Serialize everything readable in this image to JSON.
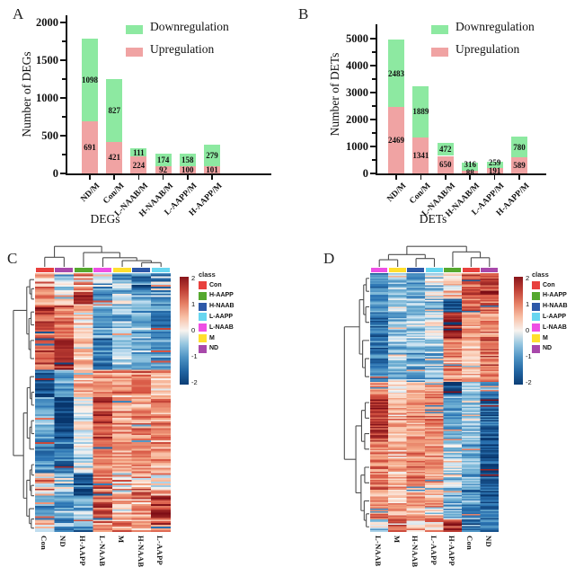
{
  "colors": {
    "bar_up": "#f0a3a3",
    "bar_down": "#8de9a1",
    "axis": "#111111",
    "dendrogram": "#4f4f4f",
    "colormap": [
      [
        -2.1,
        "#08366d"
      ],
      [
        -1.3,
        "#2b74b3"
      ],
      [
        -0.7,
        "#6fb0d3"
      ],
      [
        -0.25,
        "#c3dff0"
      ],
      [
        0,
        "#f8f3ef"
      ],
      [
        0.25,
        "#fbdccc"
      ],
      [
        0.7,
        "#f5a988"
      ],
      [
        1.3,
        "#d75442"
      ],
      [
        2.1,
        "#7e0d15"
      ]
    ]
  },
  "chart_data": [
    {
      "id": "A",
      "type": "bar",
      "stacked": true,
      "panel_label": "A",
      "xlabel": "DEGs",
      "ylabel": "Number of DEGs",
      "categories": [
        "ND/M",
        "Con/M",
        "L-NAAB/M",
        "H-NAAB/M",
        "L-AAPP/M",
        "H-AAPP/M"
      ],
      "series": [
        {
          "name": "Upregulation",
          "color": "#f0a3a3",
          "values": [
            691,
            421,
            224,
            92,
            100,
            101
          ]
        },
        {
          "name": "Downregulation",
          "color": "#8de9a1",
          "values": [
            1098,
            827,
            111,
            174,
            158,
            279
          ]
        }
      ],
      "legend_order": [
        "Downregulation",
        "Upregulation"
      ],
      "legend_position": "top-right",
      "ylim": [
        0,
        2000
      ],
      "ytick_step": 500,
      "minor_step": 250,
      "grid": false
    },
    {
      "id": "B",
      "type": "bar",
      "stacked": true,
      "panel_label": "B",
      "xlabel": "DETs",
      "ylabel": "Number of DETs",
      "categories": [
        "ND/M",
        "Con/M",
        "L-NAAB/M",
        "H-NAAB/M",
        "L-AAPP/M",
        "H-AAPP/M"
      ],
      "series": [
        {
          "name": "Upregulation",
          "color": "#f0a3a3",
          "values": [
            2469,
            1341,
            650,
            88,
            191,
            589
          ]
        },
        {
          "name": "Downregulation",
          "color": "#8de9a1",
          "values": [
            2483,
            1889,
            472,
            316,
            259,
            780
          ]
        }
      ],
      "legend_order": [
        "Downregulation",
        "Upregulation"
      ],
      "legend_position": "top-right",
      "ylim": [
        0,
        5000
      ],
      "ytick_step": 1000,
      "minor_step": 500,
      "grid": false
    },
    {
      "id": "C",
      "type": "heatmap",
      "panel_label": "C",
      "columns": [
        "Con",
        "ND",
        "H-AAPP",
        "L-NAAB",
        "M",
        "H-NAAB",
        "L-AAPP"
      ],
      "legend_title": "class",
      "class_legend": [
        {
          "label": "Con",
          "color": "#e8403d"
        },
        {
          "label": "H-AAPP",
          "color": "#55a82e"
        },
        {
          "label": "H-NAAB",
          "color": "#2d58a8"
        },
        {
          "label": "L-AAPP",
          "color": "#67d6f0"
        },
        {
          "label": "L-NAAB",
          "color": "#ee4fe4"
        },
        {
          "label": "M",
          "color": "#ffdf2e"
        },
        {
          "label": "ND",
          "color": "#a848aa"
        }
      ],
      "colorbar_ticks": [
        "2",
        "1",
        "0",
        "-1",
        "-2"
      ],
      "value_range": [
        -2,
        2
      ],
      "n_rows": 150,
      "seed": 42,
      "row_blocks": [
        {
          "frac": 0.07,
          "values": [
            0.6,
            -0.2,
            0.8,
            -0.6,
            -0.6,
            -1.4,
            -0.7
          ],
          "noise": 1.0
        },
        {
          "frac": 0.05,
          "values": [
            0.8,
            0.4,
            1.6,
            -1.3,
            -0.2,
            -0.6,
            -0.8
          ],
          "noise": 0.7
        },
        {
          "frac": 0.13,
          "values": [
            1.4,
            1.0,
            0.3,
            -0.9,
            -0.6,
            -0.8,
            -1.0
          ],
          "noise": 0.6
        },
        {
          "frac": 0.12,
          "values": [
            1.2,
            1.8,
            0.5,
            -1.3,
            -0.4,
            -0.7,
            -0.9
          ],
          "noise": 0.5
        },
        {
          "frac": 0.11,
          "values": [
            -1.7,
            -0.8,
            0.6,
            0.8,
            0.8,
            0.9,
            0.5
          ],
          "noise": 0.5
        },
        {
          "frac": 0.16,
          "values": [
            -0.8,
            -1.9,
            0.0,
            1.4,
            0.8,
            0.8,
            0.9
          ],
          "noise": 0.5
        },
        {
          "frac": 0.13,
          "values": [
            -1.0,
            -1.3,
            -0.2,
            1.0,
            0.8,
            0.9,
            0.8
          ],
          "noise": 0.5
        },
        {
          "frac": 0.09,
          "values": [
            0.5,
            -0.5,
            -1.6,
            1.1,
            0.3,
            0.7,
            0.4
          ],
          "noise": 0.9
        },
        {
          "frac": 0.09,
          "values": [
            -0.9,
            -0.7,
            -0.8,
            1.3,
            0.6,
            0.9,
            1.5
          ],
          "noise": 0.7
        },
        {
          "frac": 0.05,
          "values": [
            0.2,
            -0.8,
            -1.2,
            1.2,
            0.8,
            0.6,
            1.3
          ],
          "noise": 0.8
        }
      ],
      "col_tree": {
        "h": 0.95,
        "children": [
          {
            "h": 0.42,
            "children": [
              "Con",
              "ND"
            ]
          },
          {
            "h": 0.65,
            "children": [
              "H-AAPP",
              {
                "h": 0.4,
                "children": [
                  "L-NAAB",
                  {
                    "h": 0.26,
                    "children": [
                      "M",
                      {
                        "h": 0.16,
                        "children": [
                          "H-NAAB",
                          "L-AAPP"
                        ]
                      }
                    ]
                  }
                ]
              }
            ]
          }
        ]
      },
      "row_tree": {
        "h": 0.92,
        "children": [
          {
            "h": 0.3,
            "children": [
              {
                "h": 0.16,
                "children": [
                  0.025,
                  {
                    "h": 0.08,
                    "children": [
                      0.06,
                      0.1
                    ]
                  }
                ]
              },
              {
                "h": 0.2,
                "children": [
                  {
                    "h": 0.1,
                    "children": [
                      0.15,
                      0.2
                    ]
                  },
                  {
                    "h": 0.12,
                    "children": [
                      0.26,
                      0.33
                    ]
                  }
                ]
              }
            ]
          },
          {
            "h": 0.45,
            "children": [
              {
                "h": 0.28,
                "children": [
                  {
                    "h": 0.14,
                    "children": [
                      0.4,
                      {
                        "h": 0.07,
                        "children": [
                          0.46,
                          0.51
                        ]
                      }
                    ]
                  },
                  {
                    "h": 0.16,
                    "children": [
                      {
                        "h": 0.08,
                        "children": [
                          0.57,
                          0.62
                        ]
                      },
                      0.68
                    ]
                  }
                ]
              },
              {
                "h": 0.3,
                "children": [
                  {
                    "h": 0.15,
                    "children": [
                      {
                        "h": 0.07,
                        "children": [
                          0.74,
                          0.78
                        ]
                      },
                      {
                        "h": 0.09,
                        "children": [
                          0.82,
                          0.86
                        ]
                      }
                    ]
                  },
                  {
                    "h": 0.18,
                    "children": [
                      0.91,
                      {
                        "h": 0.09,
                        "children": [
                          0.95,
                          0.985
                        ]
                      }
                    ]
                  }
                ]
              }
            ]
          }
        ]
      }
    },
    {
      "id": "D",
      "type": "heatmap",
      "panel_label": "D",
      "columns": [
        "L-NAAB",
        "M",
        "H-NAAB",
        "L-AAPP",
        "H-AAPP",
        "Con",
        "ND"
      ],
      "legend_title": "class",
      "class_legend": [
        {
          "label": "Con",
          "color": "#e8403d"
        },
        {
          "label": "H-AAPP",
          "color": "#55a82e"
        },
        {
          "label": "H-NAAB",
          "color": "#2d58a8"
        },
        {
          "label": "L-AAPP",
          "color": "#67d6f0"
        },
        {
          "label": "L-NAAB",
          "color": "#ee4fe4"
        },
        {
          "label": "M",
          "color": "#ffdf2e"
        },
        {
          "label": "ND",
          "color": "#a848aa"
        }
      ],
      "colorbar_ticks": [
        "2",
        "1",
        "0",
        "-1",
        "-2"
      ],
      "value_range": [
        -2,
        2
      ],
      "n_rows": 190,
      "seed": 1337,
      "row_blocks": [
        {
          "frac": 0.1,
          "values": [
            -1.1,
            -0.5,
            -0.8,
            -0.4,
            0.4,
            1.3,
            1.5
          ],
          "noise": 0.6
        },
        {
          "frac": 0.05,
          "values": [
            -0.9,
            -0.3,
            -0.5,
            -0.5,
            -1.8,
            1.1,
            1.2
          ],
          "noise": 0.5
        },
        {
          "frac": 0.1,
          "values": [
            -1.4,
            -0.6,
            -0.5,
            -0.2,
            1.8,
            0.8,
            1.0
          ],
          "noise": 0.5
        },
        {
          "frac": 0.17,
          "values": [
            -1.2,
            -0.5,
            -0.8,
            -0.6,
            0.9,
            0.5,
            1.1
          ],
          "noise": 0.6
        },
        {
          "frac": 0.05,
          "values": [
            0.8,
            0.2,
            0.6,
            0.9,
            -1.9,
            -0.3,
            -0.8
          ],
          "noise": 0.5
        },
        {
          "frac": 0.18,
          "values": [
            1.6,
            0.6,
            0.8,
            1.0,
            -0.8,
            -0.5,
            -1.5
          ],
          "noise": 0.5
        },
        {
          "frac": 0.17,
          "values": [
            1.0,
            0.5,
            1.0,
            0.8,
            -0.4,
            -0.8,
            -1.7
          ],
          "noise": 0.5
        },
        {
          "frac": 0.13,
          "values": [
            0.9,
            0.6,
            0.7,
            0.6,
            -0.6,
            -1.0,
            -1.4
          ],
          "noise": 0.6
        },
        {
          "frac": 0.05,
          "values": [
            -0.3,
            0.8,
            0.4,
            0.5,
            1.6,
            -1.2,
            -0.9
          ],
          "noise": 0.8
        }
      ],
      "col_tree": {
        "h": 0.95,
        "children": [
          {
            "h": 0.55,
            "children": [
              {
                "h": 0.3,
                "children": [
                  "L-NAAB",
                  "M"
                ]
              },
              {
                "h": 0.36,
                "children": [
                  "H-NAAB",
                  "L-AAPP"
                ]
              }
            ]
          },
          {
            "h": 0.68,
            "children": [
              "H-AAPP",
              {
                "h": 0.4,
                "children": [
                  "Con",
                  "ND"
                ]
              }
            ]
          }
        ]
      },
      "row_tree": {
        "h": 0.92,
        "children": [
          {
            "h": 0.34,
            "children": [
              {
                "h": 0.18,
                "children": [
                  {
                    "h": 0.08,
                    "children": [
                      0.02,
                      0.07
                    ]
                  },
                  {
                    "h": 0.1,
                    "children": [
                      0.13,
                      0.19
                    ]
                  }
                ]
              },
              {
                "h": 0.22,
                "children": [
                  0.26,
                  {
                    "h": 0.12,
                    "children": [
                      0.33,
                      0.4
                    ]
                  }
                ]
              }
            ]
          },
          {
            "h": 0.48,
            "children": [
              {
                "h": 0.26,
                "children": [
                  {
                    "h": 0.12,
                    "children": [
                      0.5,
                      0.56
                    ]
                  },
                  {
                    "h": 0.14,
                    "children": [
                      0.62,
                      0.68
                    ]
                  }
                ]
              },
              {
                "h": 0.28,
                "children": [
                  {
                    "h": 0.14,
                    "children": [
                      0.75,
                      0.81
                    ]
                  },
                  {
                    "h": 0.16,
                    "children": [
                      0.88,
                      {
                        "h": 0.08,
                        "children": [
                          0.93,
                          0.98
                        ]
                      }
                    ]
                  }
                ]
              }
            ]
          }
        ]
      }
    }
  ]
}
